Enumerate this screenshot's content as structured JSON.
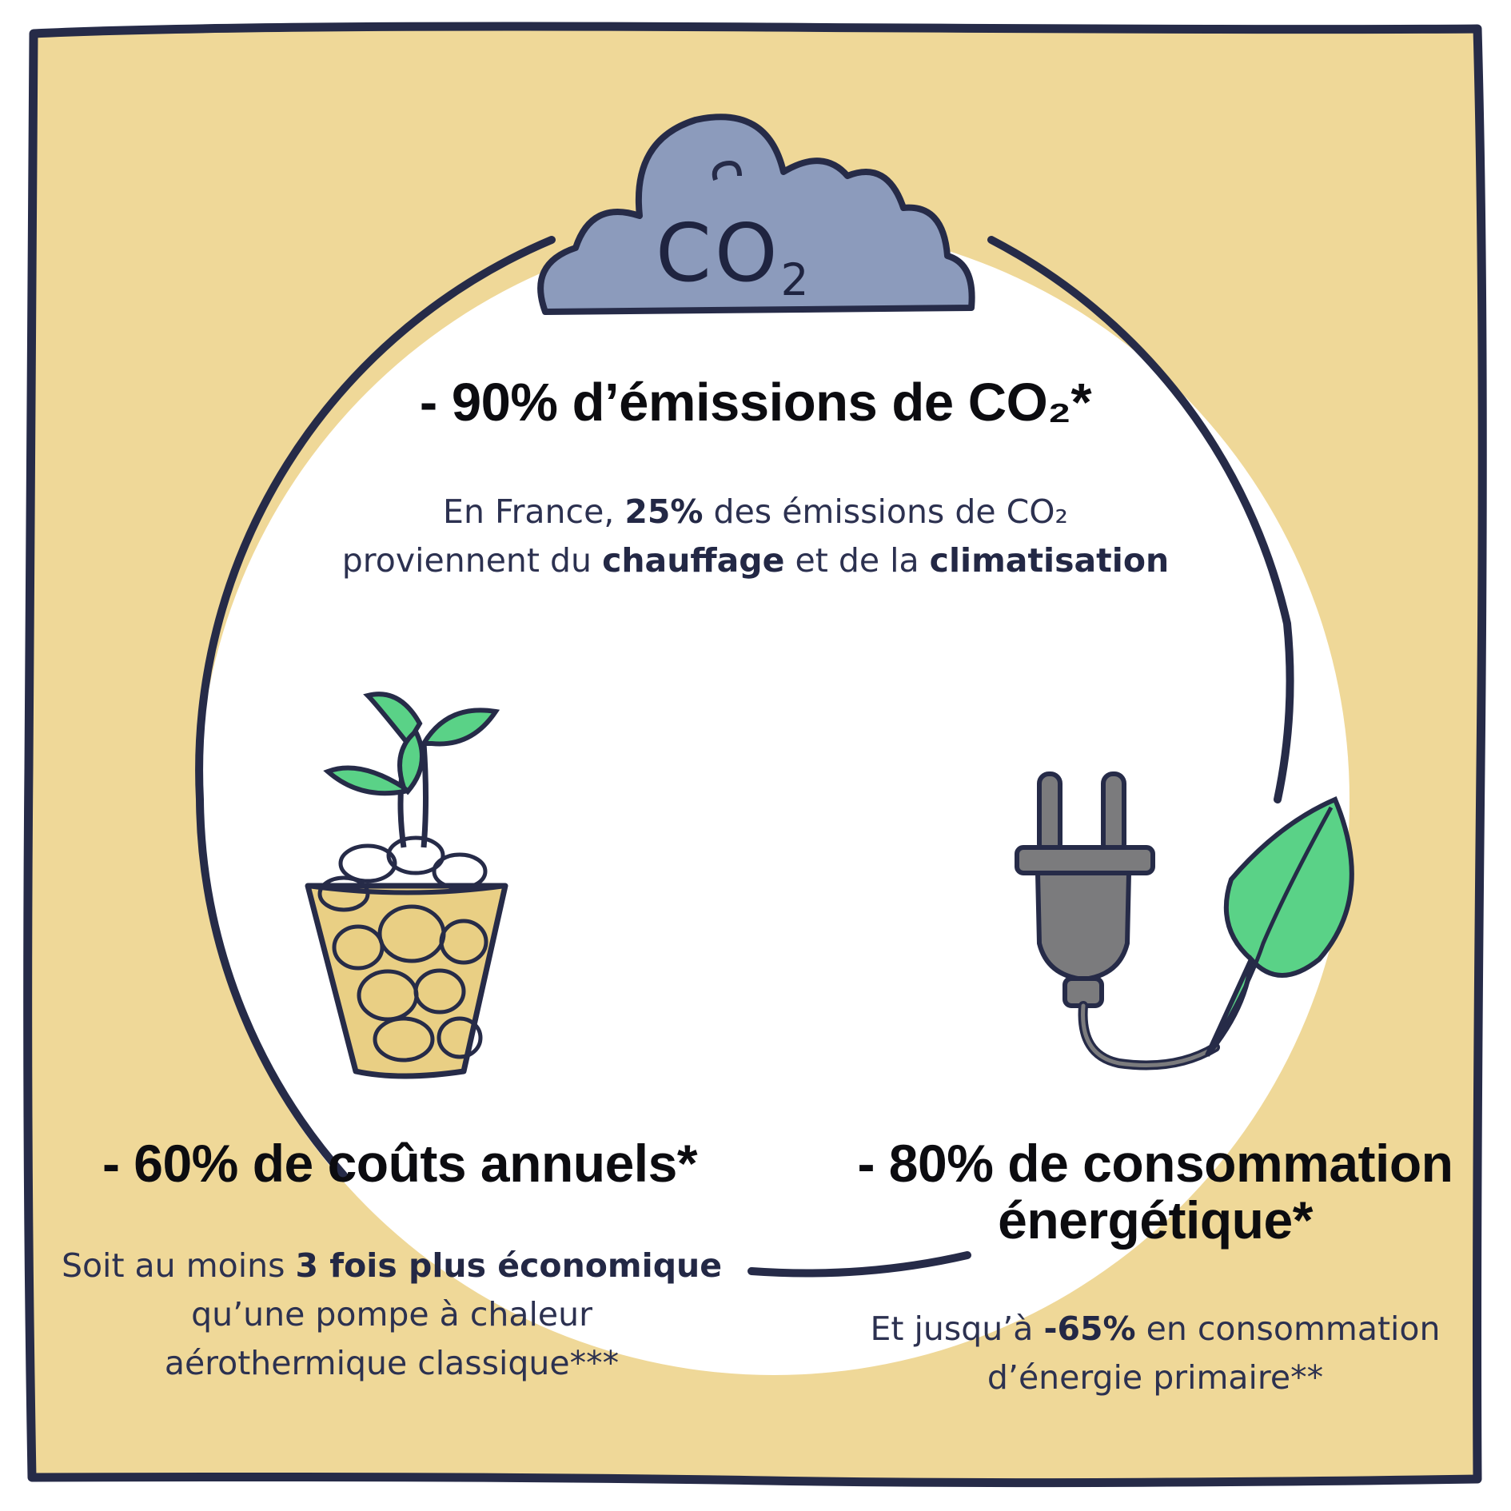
{
  "colors": {
    "background": "#efd898",
    "frame": "#262b48",
    "circle": "#ffffff",
    "cloud": "#8c9bbc",
    "leaf": "#5ad287",
    "plug": "#7b7b7d",
    "glass_fill": "#e9cf84"
  },
  "icons": [
    "co2-cloud-icon",
    "plant-coins-glass-icon",
    "plug-leaf-icon"
  ],
  "cloud": {
    "label": "CO",
    "subscript": "2"
  },
  "co2_section": {
    "headline_number": "- 90%",
    "headline_text": "d’émissions de CO₂*",
    "body_p1": "En France, ",
    "body_b1": "25%",
    "body_p2": " des émissions de CO₂",
    "body_p3": "proviennent du ",
    "body_b2": "chauffage",
    "body_p4": " et de la ",
    "body_b3": "climatisation"
  },
  "cost_section": {
    "headline_number": "- 60%",
    "headline_text": "de coûts annuels*",
    "body_p1": "Soit au moins ",
    "body_b1": "3 fois plus économique",
    "body_line2": "qu’une pompe à chaleur",
    "body_line3": "aérothermique classique***"
  },
  "energy_section": {
    "headline_number": "- 80%",
    "headline_text_line1": "de consommation",
    "headline_text_line2": "énergétique*",
    "body_p1": "Et jusqu’à ",
    "body_b1": "-65%",
    "body_p2": " en consommation",
    "body_line2": "d’énergie primaire**"
  }
}
